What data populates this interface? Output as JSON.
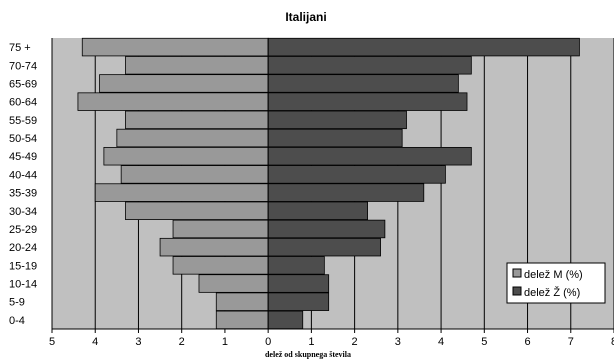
{
  "chart_data": {
    "type": "bar",
    "orientation": "horizontal",
    "title": "Italijani",
    "xlabel": "delež od skupnega števila",
    "ylabel": "",
    "categories": [
      "75 +",
      "70-74",
      "65-69",
      "60-64",
      "55-59",
      "50-54",
      "45-49",
      "40-44",
      "35-39",
      "30-34",
      "25-29",
      "20-24",
      "15-19",
      "10-14",
      "5-9",
      "0-4"
    ],
    "series": [
      {
        "name": "delež M (%)",
        "color": "#999999",
        "values": [
          4.3,
          3.3,
          3.9,
          4.4,
          3.3,
          3.5,
          3.8,
          3.4,
          4.0,
          3.3,
          2.2,
          2.5,
          2.2,
          1.6,
          1.2,
          1.2
        ]
      },
      {
        "name": "delež Ž (%)",
        "color": "#4d4d4d",
        "values": [
          7.2,
          4.7,
          4.4,
          4.6,
          3.2,
          3.1,
          4.7,
          4.1,
          3.6,
          2.3,
          2.7,
          2.6,
          1.3,
          1.4,
          1.4,
          0.8
        ]
      }
    ],
    "x_tick_labels": [
      "5",
      "4",
      "3",
      "2",
      "1",
      "0",
      "1",
      "2",
      "3",
      "4",
      "5",
      "6",
      "7",
      "8"
    ],
    "xlim": [
      -5,
      8
    ],
    "grid": true,
    "legend_position": "bottom-right",
    "plot_background": "#c0c0c0"
  }
}
